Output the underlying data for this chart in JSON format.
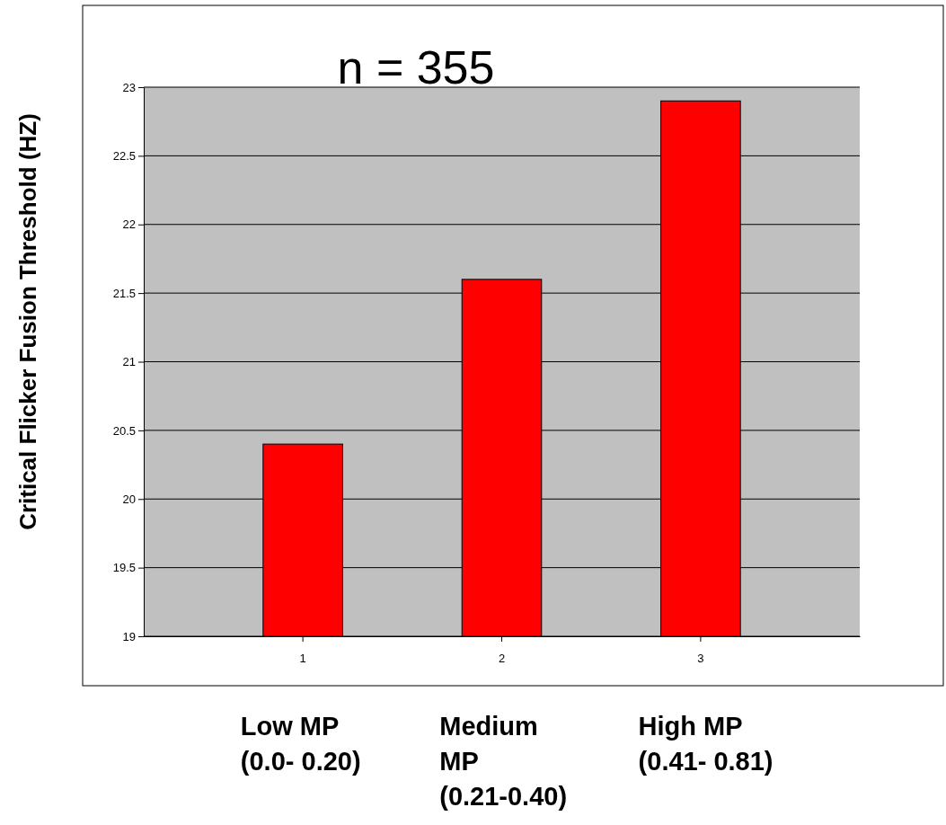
{
  "chart_data": {
    "type": "bar",
    "title": "n = 355",
    "ylabel": "Critical Flicker Fusion Threshold (HZ)",
    "categories": [
      "1",
      "2",
      "3"
    ],
    "values": [
      20.4,
      21.6,
      22.9
    ],
    "color": "#ff0000",
    "ylim": [
      19,
      23
    ],
    "yticks": [
      19,
      19.5,
      20,
      20.5,
      21,
      21.5,
      22,
      22.5,
      23
    ],
    "grid": "y",
    "annotations": [
      "Low MP (0.0- 0.20)",
      "Medium MP (0.21-0.40)",
      "High MP (0.41- 0.81)"
    ]
  }
}
